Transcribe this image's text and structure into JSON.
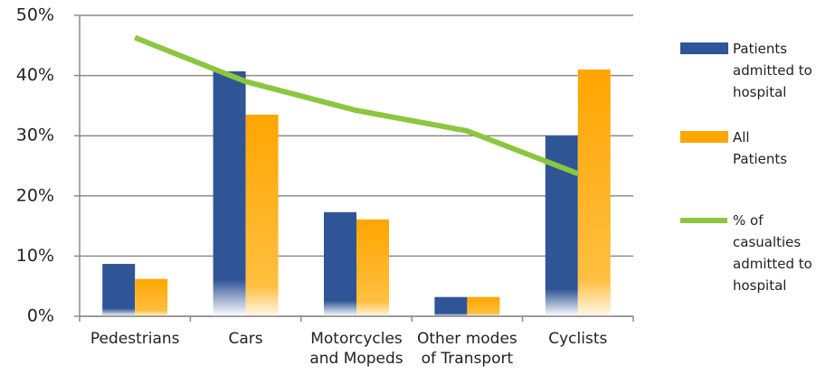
{
  "chart_data": {
    "type": "bar",
    "categories": [
      "Pedestrians",
      "Cars",
      "Motorcycles\nand Mopeds",
      "Other modes\nof Transport",
      "Cyclists"
    ],
    "series": [
      {
        "name": "Patients admitted to hospital",
        "type": "bar",
        "color": "#2f5597",
        "values": [
          8.7,
          40.7,
          17.3,
          3.2,
          30.0
        ]
      },
      {
        "name": "All Patients",
        "type": "bar",
        "color": "#ffa500",
        "values": [
          6.2,
          33.5,
          16.1,
          3.2,
          41.0
        ]
      },
      {
        "name": "% of casualties admitted to hospital",
        "type": "line",
        "color": "#8cc63f",
        "values": [
          46.3,
          39.0,
          34.2,
          30.8,
          23.7
        ]
      }
    ],
    "ylim": [
      0,
      50
    ],
    "yticks": [
      {
        "value": 0,
        "label": "0%"
      },
      {
        "value": 10,
        "label": "10%"
      },
      {
        "value": 20,
        "label": "20%"
      },
      {
        "value": 30,
        "label": "30%"
      },
      {
        "value": 40,
        "label": "40%"
      },
      {
        "value": 50,
        "label": "50%"
      }
    ],
    "grid": true,
    "legend": "right"
  }
}
